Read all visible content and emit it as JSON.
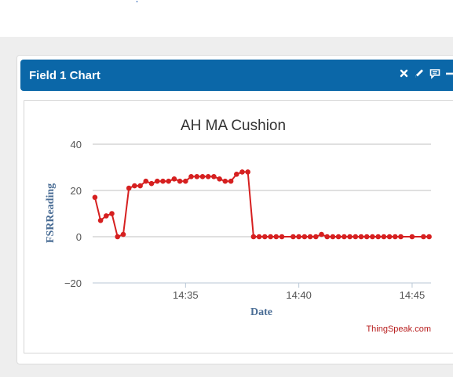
{
  "panel": {
    "title": "Field 1 Chart",
    "icons": [
      "close-icon",
      "pencil-icon",
      "comment-icon",
      "minimize-icon"
    ]
  },
  "colors": {
    "header_bg": "#0b67a8",
    "series_line": "#d62020",
    "axis_label": "#4a6d95",
    "credit": "#b81d1d"
  },
  "chart_data": {
    "type": "line",
    "title": "AH MA Cushion",
    "xlabel": "Date",
    "ylabel": "FSRReading",
    "ylim": [
      -20,
      40
    ],
    "yticks": [
      40,
      20,
      0,
      -20
    ],
    "xticks": [
      {
        "t": "14:35",
        "label": "14:35"
      },
      {
        "t": "14:40",
        "label": "14:40"
      },
      {
        "t": "14:45",
        "label": "14:45"
      }
    ],
    "xrange": [
      "14:30:54",
      "14:45:50"
    ],
    "grid": true,
    "credit": "ThingSpeak.com",
    "series": [
      {
        "points": [
          [
            "14:31:00",
            17
          ],
          [
            "14:31:15",
            7
          ],
          [
            "14:31:30",
            9
          ],
          [
            "14:31:45",
            10
          ],
          [
            "14:32:00",
            0
          ],
          [
            "14:32:15",
            1
          ],
          [
            "14:32:30",
            21
          ],
          [
            "14:32:45",
            22
          ],
          [
            "14:33:00",
            22
          ],
          [
            "14:33:15",
            24
          ],
          [
            "14:33:30",
            23
          ],
          [
            "14:33:45",
            24
          ],
          [
            "14:34:00",
            24
          ],
          [
            "14:34:15",
            24
          ],
          [
            "14:34:30",
            25
          ],
          [
            "14:34:45",
            24
          ],
          [
            "14:35:00",
            24
          ],
          [
            "14:35:15",
            26
          ],
          [
            "14:35:30",
            26
          ],
          [
            "14:35:45",
            26
          ],
          [
            "14:36:00",
            26
          ],
          [
            "14:36:15",
            26
          ],
          [
            "14:36:30",
            25
          ],
          [
            "14:36:45",
            24
          ],
          [
            "14:37:00",
            24
          ],
          [
            "14:37:15",
            27
          ],
          [
            "14:37:30",
            28
          ],
          [
            "14:37:45",
            28
          ],
          [
            "14:38:00",
            0
          ],
          [
            "14:38:15",
            0
          ],
          [
            "14:38:30",
            0
          ],
          [
            "14:38:45",
            0
          ],
          [
            "14:39:00",
            0
          ],
          [
            "14:39:15",
            0
          ],
          [
            "14:39:45",
            0
          ],
          [
            "14:40:00",
            0
          ],
          [
            "14:40:15",
            0
          ],
          [
            "14:40:30",
            0
          ],
          [
            "14:40:45",
            0
          ],
          [
            "14:41:00",
            1
          ],
          [
            "14:41:15",
            0
          ],
          [
            "14:41:30",
            0
          ],
          [
            "14:41:45",
            0
          ],
          [
            "14:42:00",
            0
          ],
          [
            "14:42:15",
            0
          ],
          [
            "14:42:30",
            0
          ],
          [
            "14:42:45",
            0
          ],
          [
            "14:43:00",
            0
          ],
          [
            "14:43:15",
            0
          ],
          [
            "14:43:30",
            0
          ],
          [
            "14:43:45",
            0
          ],
          [
            "14:44:00",
            0
          ],
          [
            "14:44:15",
            0
          ],
          [
            "14:44:30",
            0
          ],
          [
            "14:45:00",
            0
          ],
          [
            "14:45:30",
            0
          ],
          [
            "14:45:45",
            0
          ]
        ]
      }
    ]
  }
}
